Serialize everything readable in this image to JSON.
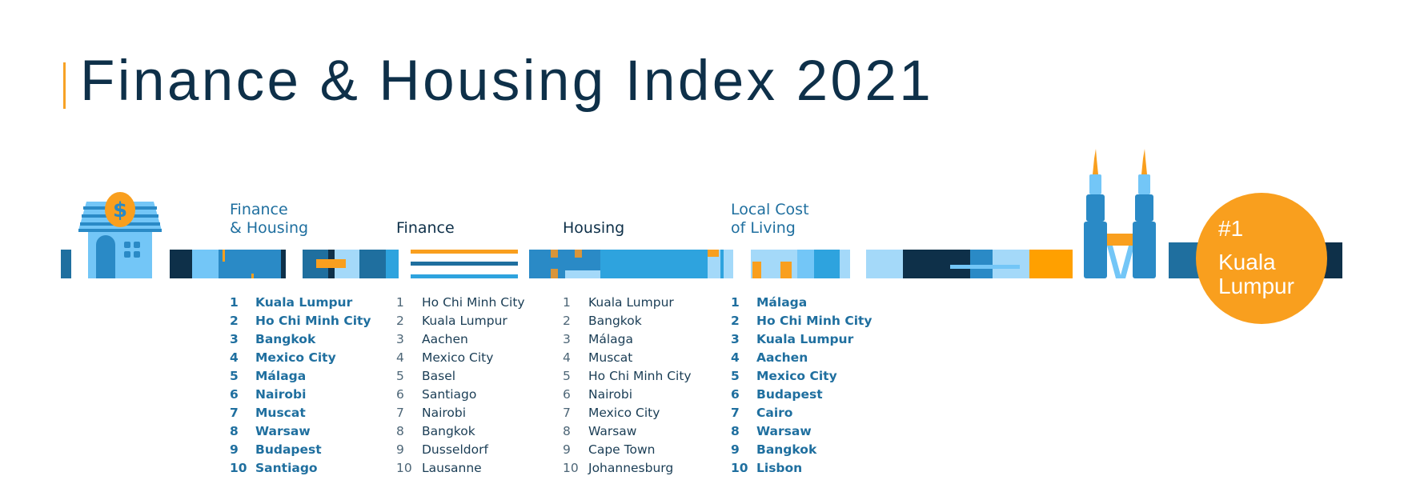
{
  "title": "Finance & Housing Index 2021",
  "colors": {
    "accent": "#f99f1e",
    "dark": "#0e3049",
    "blue": "#1f6f9f",
    "mid": "#2a8ac6",
    "bright": "#2ea3de",
    "light": "#73c6f7",
    "pale": "#a4d9f9"
  },
  "icons": [
    "house-coin-icon",
    "twin-towers-icon"
  ],
  "badge": {
    "rank": "#1",
    "line1": "Kuala",
    "line2": "Lumpur"
  },
  "columns": [
    {
      "header_line1": "Finance",
      "header_line2": "& Housing",
      "style": "bold",
      "items": [
        [
          "1",
          "Kuala Lumpur"
        ],
        [
          "2",
          "Ho Chi Minh City"
        ],
        [
          "3",
          "Bangkok"
        ],
        [
          "4",
          "Mexico City"
        ],
        [
          "5",
          "Málaga"
        ],
        [
          "6",
          "Nairobi"
        ],
        [
          "7",
          "Muscat"
        ],
        [
          "8",
          "Warsaw"
        ],
        [
          "9",
          "Budapest"
        ],
        [
          "10",
          "Santiago"
        ]
      ]
    },
    {
      "header_line1": "",
      "header_line2": "Finance",
      "style": "regular",
      "items": [
        [
          "1",
          "Ho Chi Minh City"
        ],
        [
          "2",
          "Kuala Lumpur"
        ],
        [
          "3",
          "Aachen"
        ],
        [
          "4",
          "Mexico City"
        ],
        [
          "5",
          "Basel"
        ],
        [
          "6",
          "Santiago"
        ],
        [
          "7",
          "Nairobi"
        ],
        [
          "8",
          "Bangkok"
        ],
        [
          "9",
          "Dusseldorf"
        ],
        [
          "10",
          "Lausanne"
        ]
      ]
    },
    {
      "header_line1": "",
      "header_line2": "Housing",
      "style": "regular",
      "items": [
        [
          "1",
          "Kuala Lumpur"
        ],
        [
          "2",
          "Bangkok"
        ],
        [
          "3",
          "Málaga"
        ],
        [
          "4",
          "Muscat"
        ],
        [
          "5",
          "Ho Chi Minh City"
        ],
        [
          "6",
          "Nairobi"
        ],
        [
          "7",
          "Mexico City"
        ],
        [
          "8",
          "Warsaw"
        ],
        [
          "9",
          "Cape Town"
        ],
        [
          "10",
          "Johannesburg"
        ]
      ]
    },
    {
      "header_line1": "Local Cost",
      "header_line2": "of Living",
      "style": "bold",
      "items": [
        [
          "1",
          "Málaga"
        ],
        [
          "2",
          "Ho Chi Minh City"
        ],
        [
          "3",
          "Kuala Lumpur"
        ],
        [
          "4",
          "Aachen"
        ],
        [
          "5",
          "Mexico City"
        ],
        [
          "6",
          "Budapest"
        ],
        [
          "7",
          "Cairo"
        ],
        [
          "8",
          "Warsaw"
        ],
        [
          "9",
          "Bangkok"
        ],
        [
          "10",
          "Lisbon"
        ]
      ]
    }
  ]
}
